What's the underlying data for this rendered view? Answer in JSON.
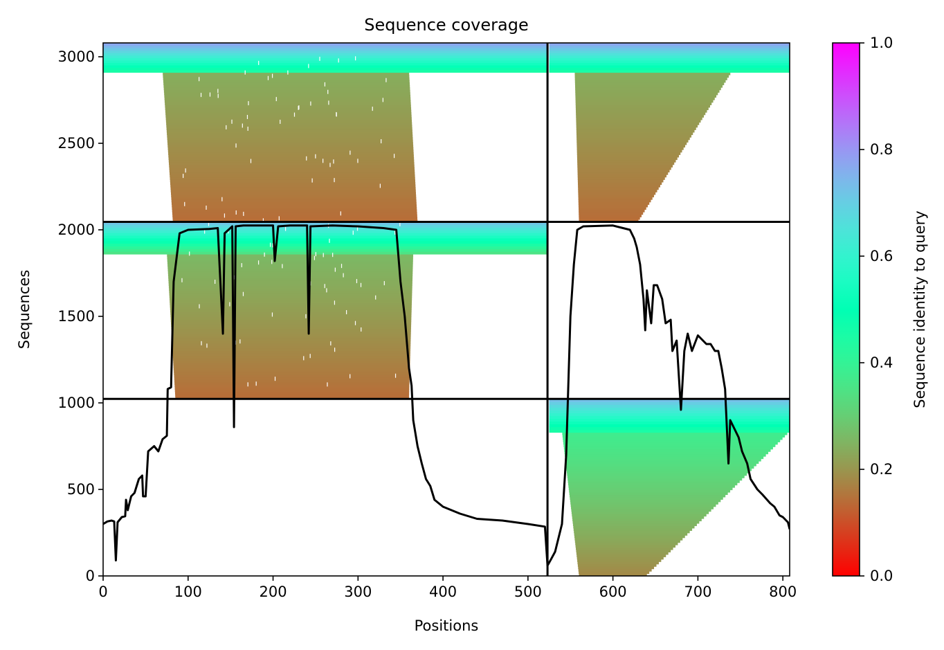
{
  "chart_data": {
    "type": "heatmap",
    "title": "Sequence coverage",
    "xlabel": "Positions",
    "ylabel": "Sequences",
    "xlim": [
      0,
      808
    ],
    "ylim": [
      0,
      3080
    ],
    "x_ticks": [
      0,
      100,
      200,
      300,
      400,
      500,
      600,
      700,
      800
    ],
    "y_ticks": [
      0,
      500,
      1000,
      1500,
      2000,
      2500,
      3000
    ],
    "colorbar": {
      "label": "Sequence identity to query",
      "range": [
        0.0,
        1.0
      ],
      "ticks": [
        0.0,
        0.2,
        0.4,
        0.6,
        0.8,
        1.0
      ],
      "colormap": "rainbow_r"
    },
    "chain_boundary_x": 523,
    "group_boundaries_y": [
      1023,
      2046
    ],
    "coverage_line": {
      "name": "coverage",
      "color": "#000000",
      "points": [
        [
          0,
          300
        ],
        [
          5,
          315
        ],
        [
          10,
          320
        ],
        [
          13,
          315
        ],
        [
          15,
          90
        ],
        [
          17,
          310
        ],
        [
          22,
          340
        ],
        [
          26,
          345
        ],
        [
          27,
          440
        ],
        [
          29,
          380
        ],
        [
          33,
          460
        ],
        [
          37,
          480
        ],
        [
          42,
          560
        ],
        [
          46,
          580
        ],
        [
          47,
          460
        ],
        [
          50,
          460
        ],
        [
          53,
          720
        ],
        [
          60,
          750
        ],
        [
          65,
          720
        ],
        [
          70,
          790
        ],
        [
          75,
          810
        ],
        [
          76,
          1080
        ],
        [
          80,
          1090
        ],
        [
          83,
          1700
        ],
        [
          90,
          1980
        ],
        [
          100,
          2000
        ],
        [
          125,
          2005
        ],
        [
          135,
          2010
        ],
        [
          137,
          1800
        ],
        [
          141,
          1400
        ],
        [
          143,
          1980
        ],
        [
          152,
          2020
        ],
        [
          154,
          860
        ],
        [
          156,
          2020
        ],
        [
          165,
          2025
        ],
        [
          200,
          2025
        ],
        [
          202,
          1820
        ],
        [
          206,
          2020
        ],
        [
          220,
          2025
        ],
        [
          240,
          2025
        ],
        [
          242,
          1400
        ],
        [
          244,
          2020
        ],
        [
          270,
          2025
        ],
        [
          300,
          2020
        ],
        [
          330,
          2010
        ],
        [
          345,
          2000
        ],
        [
          350,
          1700
        ],
        [
          355,
          1500
        ],
        [
          360,
          1200
        ],
        [
          363,
          1100
        ],
        [
          365,
          900
        ],
        [
          370,
          750
        ],
        [
          375,
          650
        ],
        [
          380,
          560
        ],
        [
          385,
          520
        ],
        [
          390,
          440
        ],
        [
          400,
          400
        ],
        [
          420,
          360
        ],
        [
          440,
          330
        ],
        [
          470,
          320
        ],
        [
          500,
          300
        ],
        [
          520,
          285
        ],
        [
          523,
          60
        ],
        [
          527,
          95
        ],
        [
          532,
          140
        ],
        [
          540,
          300
        ],
        [
          545,
          700
        ],
        [
          550,
          1500
        ],
        [
          554,
          1800
        ],
        [
          558,
          2000
        ],
        [
          565,
          2020
        ],
        [
          600,
          2025
        ],
        [
          620,
          2000
        ],
        [
          625,
          1950
        ],
        [
          628,
          1900
        ],
        [
          632,
          1800
        ],
        [
          636,
          1600
        ],
        [
          638,
          1420
        ],
        [
          640,
          1650
        ],
        [
          645,
          1460
        ],
        [
          648,
          1680
        ],
        [
          652,
          1680
        ],
        [
          658,
          1600
        ],
        [
          662,
          1460
        ],
        [
          668,
          1480
        ],
        [
          670,
          1300
        ],
        [
          675,
          1360
        ],
        [
          680,
          960
        ],
        [
          684,
          1300
        ],
        [
          688,
          1400
        ],
        [
          693,
          1300
        ],
        [
          700,
          1390
        ],
        [
          710,
          1340
        ],
        [
          715,
          1340
        ],
        [
          720,
          1300
        ],
        [
          724,
          1300
        ],
        [
          728,
          1200
        ],
        [
          732,
          1080
        ],
        [
          736,
          650
        ],
        [
          738,
          900
        ],
        [
          742,
          860
        ],
        [
          748,
          800
        ],
        [
          752,
          720
        ],
        [
          758,
          650
        ],
        [
          762,
          560
        ],
        [
          770,
          500
        ],
        [
          776,
          470
        ],
        [
          785,
          420
        ],
        [
          790,
          400
        ],
        [
          796,
          350
        ],
        [
          800,
          340
        ],
        [
          806,
          310
        ],
        [
          808,
          270
        ]
      ]
    }
  }
}
